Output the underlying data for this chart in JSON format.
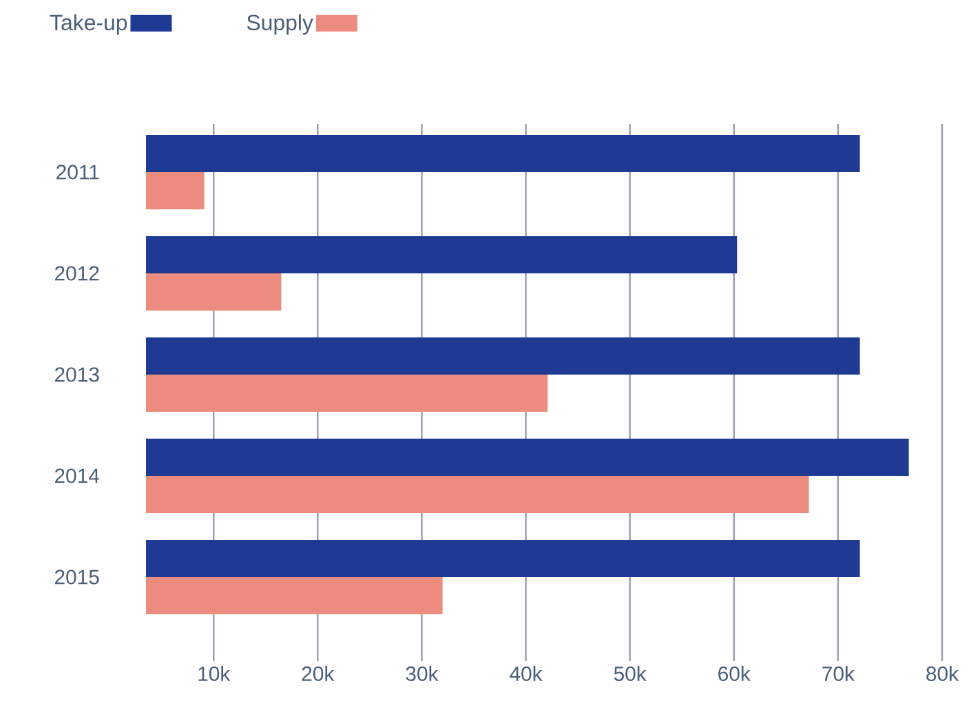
{
  "chart_data": {
    "type": "bar",
    "orientation": "horizontal",
    "categories": [
      "2011",
      "2012",
      "2013",
      "2014",
      "2015"
    ],
    "series": [
      {
        "name": "Take-up",
        "color": "#1f3a93",
        "values": [
          72.1,
          60.3,
          72.1,
          76.8,
          72.1
        ]
      },
      {
        "name": "Supply",
        "color": "#ec8c7e",
        "values": [
          9.1,
          16.5,
          42.1,
          67.2,
          32.0
        ]
      }
    ],
    "xlim": [
      3.5,
      80
    ],
    "xticks": [
      {
        "value": 10,
        "label": "10k"
      },
      {
        "value": 20,
        "label": "20k"
      },
      {
        "value": 30,
        "label": "30k"
      },
      {
        "value": 40,
        "label": "40k"
      },
      {
        "value": 50,
        "label": "50k"
      },
      {
        "value": 60,
        "label": "60k"
      },
      {
        "value": 70,
        "label": "70k"
      },
      {
        "value": 80,
        "label": "80k"
      }
    ],
    "grid": "x",
    "legend": "top left"
  }
}
